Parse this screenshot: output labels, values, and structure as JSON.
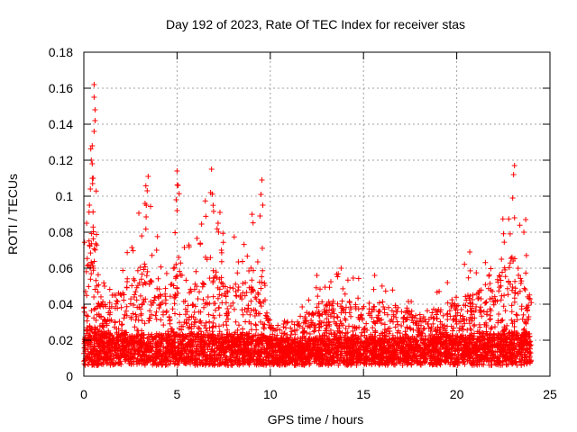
{
  "chart_data": {
    "type": "scatter",
    "title": "Day 192 of 2023, Rate Of TEC Index for receiver stas",
    "xlabel": "GPS time / hours",
    "ylabel": "ROTI / TECUs",
    "xlim": [
      0,
      25
    ],
    "ylim": [
      0,
      0.18
    ],
    "xticks": [
      0,
      5,
      10,
      15,
      20,
      25
    ],
    "xtick_labels": [
      "0",
      "5",
      "10",
      "15",
      "20",
      "25"
    ],
    "yticks": [
      0,
      0.02,
      0.04,
      0.06,
      0.08,
      0.1,
      0.12,
      0.14,
      0.16,
      0.18
    ],
    "ytick_labels": [
      "0",
      "0.02",
      "0.04",
      "0.06",
      "0.08",
      "0.1",
      "0.12",
      "0.14",
      "0.16",
      "0.18"
    ],
    "grid": true,
    "marker": "+",
    "marker_color": "#ff0000",
    "data_x_range_hours": [
      0,
      24
    ],
    "series": [
      {
        "name": "ROTI",
        "envelope": [
          {
            "x": 0.0,
            "base": 0.018,
            "peak": 0.09
          },
          {
            "x": 0.3,
            "base": 0.02,
            "peak": 0.12
          },
          {
            "x": 0.5,
            "base": 0.02,
            "peak": 0.162
          },
          {
            "x": 0.8,
            "base": 0.018,
            "peak": 0.055
          },
          {
            "x": 1.5,
            "base": 0.016,
            "peak": 0.05
          },
          {
            "x": 2.5,
            "base": 0.016,
            "peak": 0.078
          },
          {
            "x": 3.4,
            "base": 0.016,
            "peak": 0.112
          },
          {
            "x": 4.3,
            "base": 0.016,
            "peak": 0.068
          },
          {
            "x": 5.0,
            "base": 0.016,
            "peak": 0.114
          },
          {
            "x": 5.8,
            "base": 0.016,
            "peak": 0.07
          },
          {
            "x": 6.8,
            "base": 0.016,
            "peak": 0.115
          },
          {
            "x": 7.5,
            "base": 0.016,
            "peak": 0.078
          },
          {
            "x": 8.5,
            "base": 0.016,
            "peak": 0.08
          },
          {
            "x": 9.5,
            "base": 0.016,
            "peak": 0.11
          },
          {
            "x": 10.0,
            "base": 0.014,
            "peak": 0.03
          },
          {
            "x": 11.5,
            "base": 0.014,
            "peak": 0.035
          },
          {
            "x": 12.5,
            "base": 0.014,
            "peak": 0.056
          },
          {
            "x": 13.8,
            "base": 0.014,
            "peak": 0.061
          },
          {
            "x": 15.0,
            "base": 0.014,
            "peak": 0.055
          },
          {
            "x": 16.5,
            "base": 0.014,
            "peak": 0.052
          },
          {
            "x": 18.0,
            "base": 0.014,
            "peak": 0.042
          },
          {
            "x": 19.5,
            "base": 0.015,
            "peak": 0.05
          },
          {
            "x": 20.8,
            "base": 0.015,
            "peak": 0.069
          },
          {
            "x": 22.0,
            "base": 0.016,
            "peak": 0.075
          },
          {
            "x": 23.0,
            "base": 0.017,
            "peak": 0.117
          },
          {
            "x": 23.5,
            "base": 0.017,
            "peak": 0.087
          },
          {
            "x": 24.0,
            "base": 0.016,
            "peak": 0.06
          }
        ],
        "highlight_points": [
          {
            "x": 0.55,
            "y": 0.162
          },
          {
            "x": 0.55,
            "y": 0.155
          },
          {
            "x": 0.6,
            "y": 0.148
          },
          {
            "x": 0.6,
            "y": 0.142
          },
          {
            "x": 0.55,
            "y": 0.136
          },
          {
            "x": 0.45,
            "y": 0.128
          },
          {
            "x": 0.4,
            "y": 0.12
          },
          {
            "x": 0.45,
            "y": 0.118
          },
          {
            "x": 0.5,
            "y": 0.11
          },
          {
            "x": 0.35,
            "y": 0.104
          },
          {
            "x": 0.3,
            "y": 0.095
          },
          {
            "x": 0.15,
            "y": 0.085
          },
          {
            "x": 3.45,
            "y": 0.111
          },
          {
            "x": 3.4,
            "y": 0.103
          },
          {
            "x": 3.35,
            "y": 0.095
          },
          {
            "x": 5.0,
            "y": 0.114
          },
          {
            "x": 5.05,
            "y": 0.106
          },
          {
            "x": 4.95,
            "y": 0.098
          },
          {
            "x": 5.0,
            "y": 0.092
          },
          {
            "x": 6.85,
            "y": 0.115
          },
          {
            "x": 6.8,
            "y": 0.102
          },
          {
            "x": 7.3,
            "y": 0.091
          },
          {
            "x": 7.2,
            "y": 0.085
          },
          {
            "x": 9.55,
            "y": 0.109
          },
          {
            "x": 9.5,
            "y": 0.101
          },
          {
            "x": 9.6,
            "y": 0.095
          },
          {
            "x": 9.45,
            "y": 0.089
          },
          {
            "x": 23.1,
            "y": 0.117
          },
          {
            "x": 23.05,
            "y": 0.112
          },
          {
            "x": 23.0,
            "y": 0.099
          },
          {
            "x": 23.1,
            "y": 0.088
          },
          {
            "x": 23.7,
            "y": 0.087
          },
          {
            "x": 23.6,
            "y": 0.08
          },
          {
            "x": 12.5,
            "y": 0.056
          },
          {
            "x": 13.8,
            "y": 0.06
          },
          {
            "x": 15.6,
            "y": 0.056
          },
          {
            "x": 19.5,
            "y": 0.052
          },
          {
            "x": 20.7,
            "y": 0.069
          },
          {
            "x": 22.4,
            "y": 0.065
          }
        ]
      }
    ]
  }
}
